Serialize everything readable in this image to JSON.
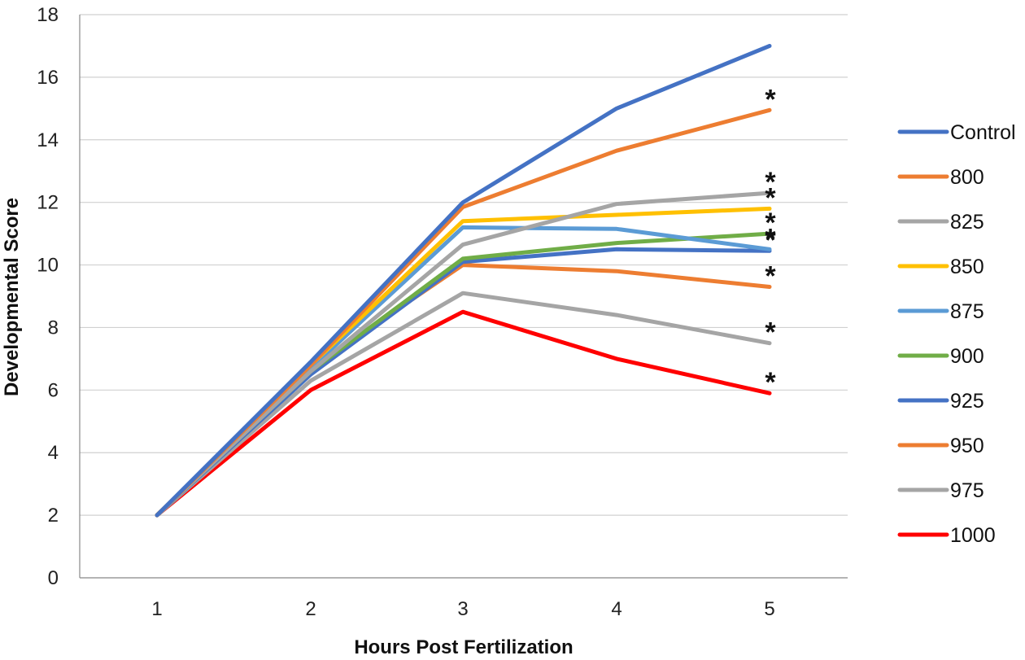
{
  "chart_data": {
    "type": "line",
    "title": "",
    "xlabel": "Hours Post Fertilization",
    "ylabel": "Developmental  Score",
    "x": [
      1,
      2,
      3,
      4,
      5
    ],
    "x_tick_labels": [
      "1",
      "2",
      "3",
      "4",
      "5"
    ],
    "y_tick_labels": [
      "0",
      "2",
      "4",
      "6",
      "8",
      "10",
      "12",
      "14",
      "16",
      "18"
    ],
    "ylim": [
      0,
      18
    ],
    "grid": "horizontal",
    "legend": "right",
    "series": [
      {
        "name": "Control",
        "color": "#4472C4",
        "values": [
          2,
          6.9,
          12.0,
          15.0,
          17.0
        ],
        "annotation": ""
      },
      {
        "name": "800",
        "color": "#ED7D31",
        "values": [
          2,
          6.8,
          11.85,
          13.65,
          14.95
        ],
        "annotation": "*"
      },
      {
        "name": "825",
        "color": "#A5A5A5",
        "values": [
          2,
          6.6,
          10.65,
          11.95,
          12.3
        ],
        "annotation": "*"
      },
      {
        "name": "850",
        "color": "#FFC000",
        "values": [
          2,
          6.8,
          11.4,
          11.6,
          11.8
        ],
        "annotation": "*"
      },
      {
        "name": "875",
        "color": "#5B9BD5",
        "values": [
          2,
          6.7,
          11.2,
          11.15,
          10.5
        ],
        "annotation": "*"
      },
      {
        "name": "900",
        "color": "#70AD47",
        "values": [
          2,
          6.6,
          10.2,
          10.7,
          11.0
        ],
        "annotation": "*"
      },
      {
        "name": "925",
        "color": "#4472C4",
        "values": [
          2,
          6.5,
          10.1,
          10.5,
          10.45
        ],
        "annotation": "*"
      },
      {
        "name": "950",
        "color": "#ED7D31",
        "values": [
          2,
          6.7,
          10.0,
          9.8,
          9.3
        ],
        "annotation": "*"
      },
      {
        "name": "975",
        "color": "#A5A5A5",
        "values": [
          2,
          6.3,
          9.1,
          8.4,
          7.5
        ],
        "annotation": "*"
      },
      {
        "name": "1000",
        "color": "#FF0000",
        "values": [
          2,
          6.0,
          8.5,
          7.0,
          5.9
        ],
        "annotation": "*"
      }
    ]
  }
}
